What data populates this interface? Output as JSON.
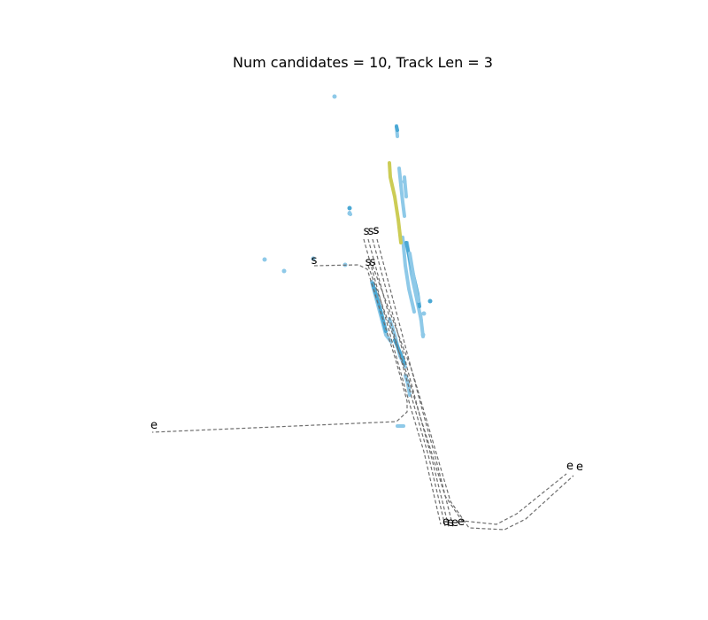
{
  "chart_data": {
    "type": "line",
    "title": "Num candidates = 10, Track Len = 3",
    "xlabel": "",
    "ylabel": "",
    "axes_visible": false,
    "grid": false,
    "colors": {
      "candidate_path": "#6e6e6e",
      "history_light": "#8ec9e8",
      "history_dark": "#4aa8d4",
      "highlight_track": "#cccc55",
      "text": "#000000"
    },
    "start_label": "s",
    "end_label": "e",
    "candidate_paths": [
      {
        "points": [
          [
            355,
            300
          ],
          [
            405,
            299
          ],
          [
            415,
            304
          ],
          [
            447,
            406
          ],
          [
            460,
            453
          ],
          [
            460,
            465
          ],
          [
            448,
            476
          ],
          [
            172,
            488
          ]
        ],
        "start": [
          355,
          298
        ],
        "end": [
          174,
          484
        ]
      },
      {
        "points": [
          [
            411,
            270
          ],
          [
            447,
            400
          ],
          [
            464,
            460
          ],
          [
            479,
            510
          ],
          [
            498,
            592
          ]
        ],
        "start": [
          414,
          265
        ],
        "end": [
          504,
          593
        ]
      },
      {
        "points": [
          [
            416,
            270
          ],
          [
            452,
            402
          ],
          [
            469,
            462
          ],
          [
            484,
            514
          ],
          [
            503,
            594
          ]
        ],
        "start": [
          419,
          265
        ],
        "end": [
          509,
          594
        ]
      },
      {
        "points": [
          [
            421,
            270
          ],
          [
            457,
            404
          ],
          [
            473,
            464
          ],
          [
            488,
            518
          ],
          [
            507,
            595
          ]
        ],
        "start": [
          425,
          264
        ],
        "end": [
          514,
          594
        ]
      },
      {
        "points": [
          [
            426,
            270
          ],
          [
            462,
            406
          ],
          [
            478,
            466
          ],
          [
            493,
            520
          ],
          [
            512,
            595
          ]
        ],
        "start": [
          425,
          264
        ],
        "end": [
          521,
          593
        ]
      },
      {
        "points": [
          [
            416,
            300
          ],
          [
            459,
            420
          ],
          [
            503,
            560
          ],
          [
            522,
            588
          ],
          [
            561,
            592
          ],
          [
            584,
            580
          ],
          [
            640,
            535
          ]
        ],
        "start": [
          416,
          300
        ],
        "end": [
          644,
          530
        ]
      },
      {
        "points": [
          [
            421,
            300
          ],
          [
            466,
            420
          ],
          [
            509,
            566
          ],
          [
            530,
            596
          ],
          [
            570,
            598
          ],
          [
            594,
            586
          ],
          [
            648,
            537
          ]
        ],
        "start": [
          421,
          300
        ],
        "end": [
          655,
          531
        ]
      }
    ],
    "history_tracks": [
      {
        "tone": "light",
        "points": [
          [
            451,
            190
          ],
          [
            455,
            228
          ],
          [
            457,
            244
          ]
        ]
      },
      {
        "tone": "light",
        "points": [
          [
            457,
            200
          ],
          [
            459,
            222
          ]
        ]
      },
      {
        "tone": "light",
        "points": [
          [
            448,
            142
          ],
          [
            449,
            154
          ]
        ]
      },
      {
        "tone": "dark",
        "points": [
          [
            448,
            143
          ],
          [
            449,
            147
          ]
        ]
      },
      {
        "tone": "light",
        "points": [
          [
            455,
            268
          ],
          [
            458,
            300
          ],
          [
            462,
            326
          ],
          [
            468,
            352
          ]
        ]
      },
      {
        "tone": "light",
        "points": [
          [
            460,
            274
          ],
          [
            465,
            310
          ],
          [
            471,
            338
          ],
          [
            476,
            362
          ]
        ]
      },
      {
        "tone": "dark",
        "points": [
          [
            459,
            274
          ],
          [
            466,
            306
          ],
          [
            472,
            332
          ],
          [
            474,
            346
          ]
        ]
      },
      {
        "tone": "light",
        "points": [
          [
            463,
            286
          ],
          [
            469,
            322
          ],
          [
            473,
            340
          ]
        ]
      },
      {
        "tone": "light",
        "points": [
          [
            420,
            318
          ],
          [
            428,
            348
          ],
          [
            436,
            378
          ],
          [
            442,
            386
          ]
        ]
      },
      {
        "tone": "dark",
        "points": [
          [
            421,
            320
          ],
          [
            429,
            346
          ],
          [
            436,
            374
          ]
        ]
      },
      {
        "tone": "light",
        "points": [
          [
            440,
            360
          ],
          [
            446,
            378
          ],
          [
            452,
            402
          ],
          [
            458,
            414
          ]
        ]
      },
      {
        "tone": "dark",
        "points": [
          [
            446,
            384
          ],
          [
            452,
            398
          ],
          [
            457,
            410
          ]
        ]
      },
      {
        "tone": "light",
        "points": [
          [
            458,
            424
          ],
          [
            461,
            434
          ],
          [
            463,
            446
          ]
        ]
      },
      {
        "tone": "light",
        "points": [
          [
            475,
            354
          ],
          [
            478,
            380
          ]
        ]
      },
      {
        "tone": "light",
        "points": [
          [
            449,
            481
          ],
          [
            456,
            481
          ]
        ]
      },
      {
        "tone": "light",
        "points": [
          [
            395,
            240
          ],
          [
            396,
            242
          ]
        ]
      }
    ],
    "history_dots": [
      {
        "tone": "light",
        "p": [
          378,
          109
        ]
      },
      {
        "tone": "dark",
        "p": [
          395,
          235
        ]
      },
      {
        "tone": "light",
        "p": [
          395,
          241
        ]
      },
      {
        "tone": "light",
        "p": [
          299,
          293
        ]
      },
      {
        "tone": "light",
        "p": [
          321,
          306
        ]
      },
      {
        "tone": "light",
        "p": [
          354,
          292
        ]
      },
      {
        "tone": "light",
        "p": [
          390,
          299
        ]
      },
      {
        "tone": "dark",
        "p": [
          486,
          340
        ]
      },
      {
        "tone": "light",
        "p": [
          479,
          354
        ]
      },
      {
        "tone": "light",
        "p": [
          478,
          378
        ]
      },
      {
        "tone": "light",
        "p": [
          457,
          205
        ]
      },
      {
        "tone": "dark",
        "p": [
          457,
          410
        ]
      }
    ],
    "highlight_track": {
      "points": [
        [
          440,
          184
        ],
        [
          441,
          200
        ],
        [
          446,
          222
        ],
        [
          450,
          248
        ],
        [
          453,
          274
        ]
      ]
    }
  }
}
